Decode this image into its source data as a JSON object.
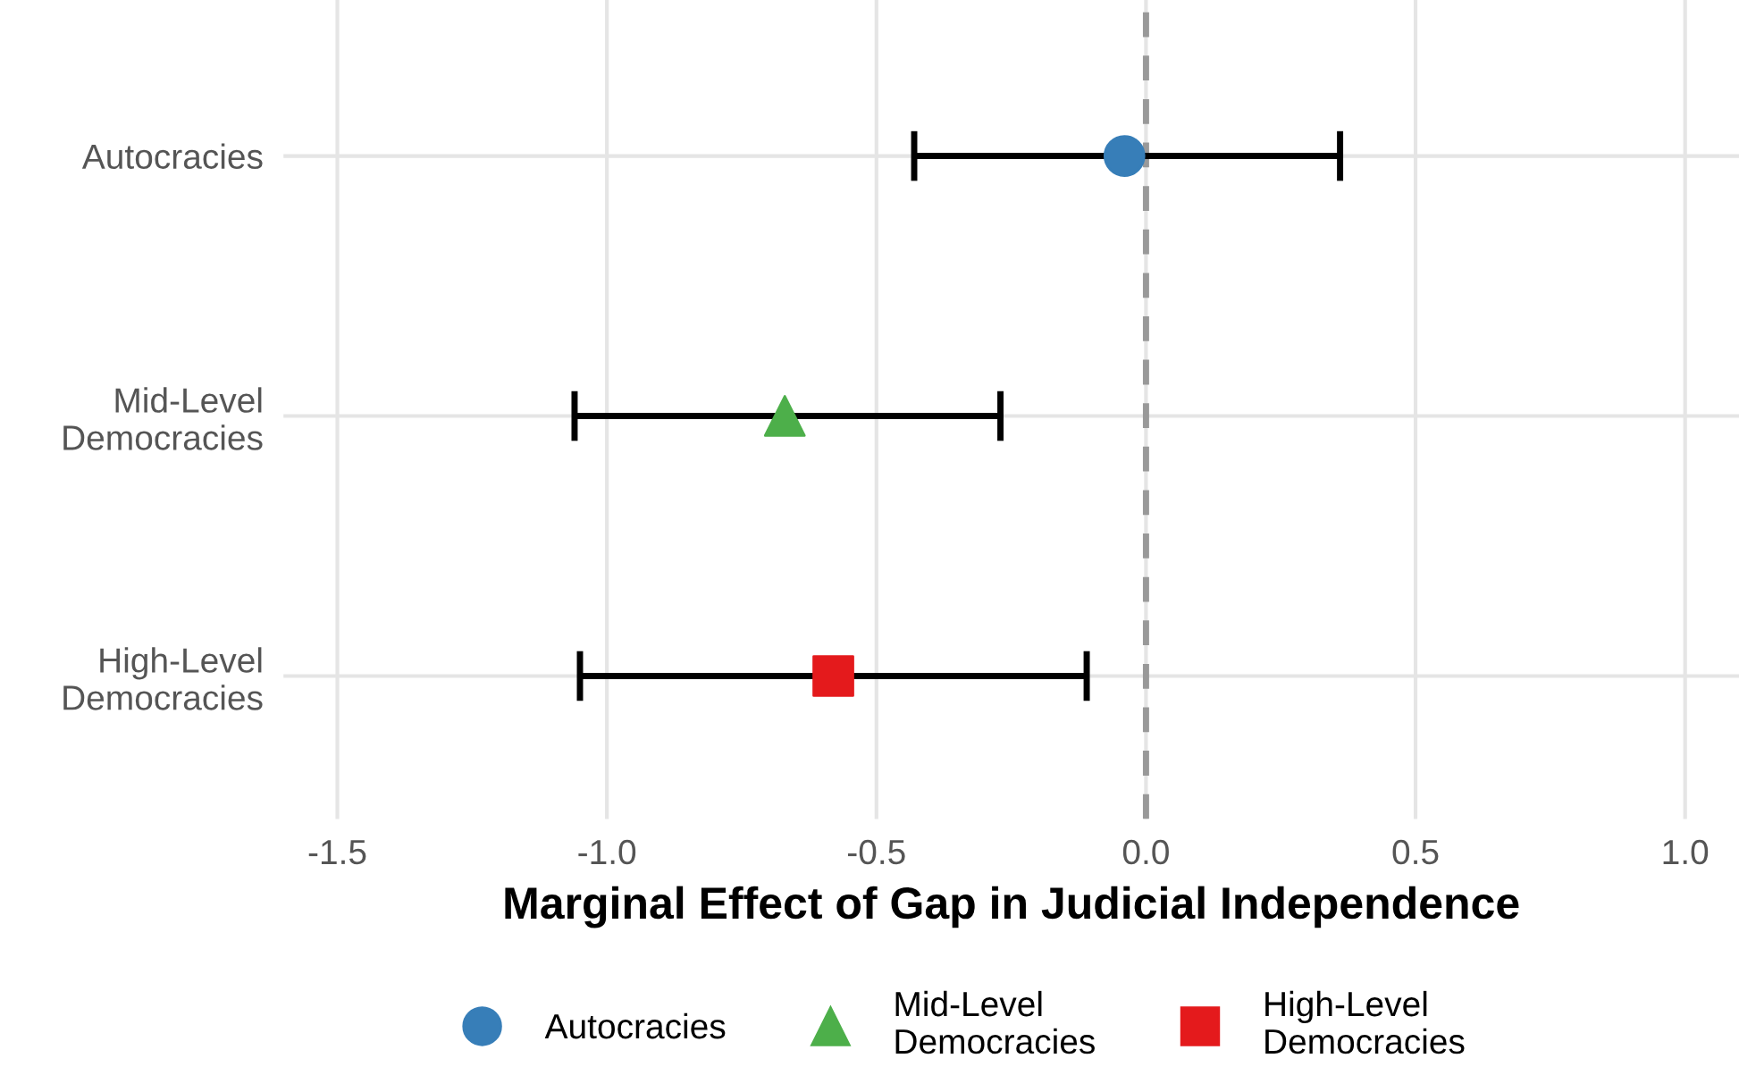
{
  "chart_data": {
    "type": "scatter",
    "orientation": "horizontal",
    "categories": [
      "Autocracies",
      "Mid-Level\nDemocracies",
      "High-Level\nDemocracies"
    ],
    "xlabel": "Marginal Effect of Gap in Judicial Independence",
    "series": [
      {
        "name": "Autocracies",
        "color": "#377eb8",
        "marker": "circle",
        "values": [
          -0.04,
          null,
          null
        ],
        "errors": [
          [
            -0.43,
            0.36
          ],
          null,
          null
        ]
      },
      {
        "name": "Mid-Level\nDemocracies",
        "color": "#4daf4a",
        "marker": "triangle",
        "values": [
          null,
          -0.67,
          null
        ],
        "errors": [
          null,
          [
            -1.06,
            -0.27
          ],
          null
        ]
      },
      {
        "name": "High-Level\nDemocracies",
        "color": "#e41a1c",
        "marker": "square",
        "values": [
          null,
          null,
          -0.58
        ],
        "errors": [
          null,
          null,
          [
            -1.05,
            -0.11
          ]
        ]
      }
    ],
    "xlim": [
      -1.6,
      1.1
    ],
    "xticks": [
      {
        "value": -1.5,
        "label": "-1.5"
      },
      {
        "value": -1.0,
        "label": "-1.0"
      },
      {
        "value": -0.5,
        "label": "-0.5"
      },
      {
        "value": 0.0,
        "label": "0.0"
      },
      {
        "value": 0.5,
        "label": "0.5"
      },
      {
        "value": 1.0,
        "label": "1.0"
      }
    ],
    "ref_lines": [
      {
        "axis": "x",
        "value": 0,
        "color": "#999999",
        "line_style": "dashed"
      }
    ],
    "grid": true,
    "legend": "bottom"
  }
}
